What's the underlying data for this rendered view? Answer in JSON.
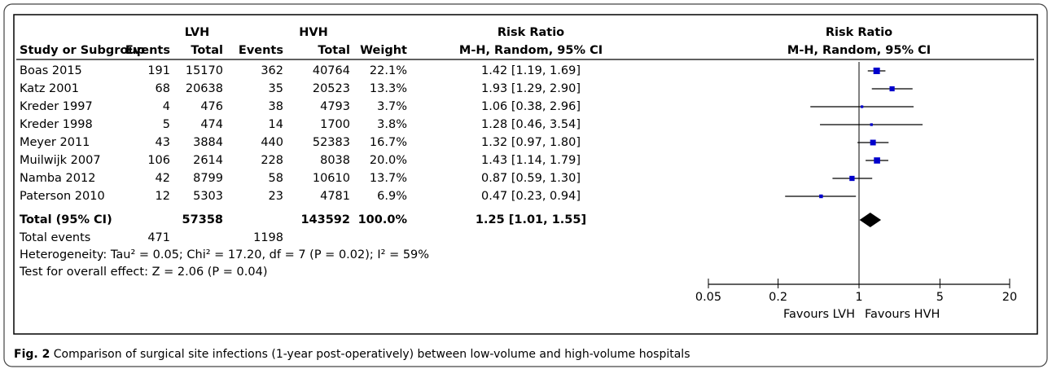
{
  "table": {
    "group_headers": [
      "LVH",
      "HVH",
      "Risk Ratio",
      "Risk Ratio"
    ],
    "column_headers": [
      "Study or Subgroup",
      "Events",
      "Total",
      "Events",
      "Total",
      "Weight",
      "M-H, Random, 95% CI",
      "M-H, Random, 95% CI"
    ],
    "rows": [
      {
        "study": "Boas 2015",
        "lvh_events": 191,
        "lvh_total": 15170,
        "hvh_events": 362,
        "hvh_total": 40764,
        "weight": 22.1,
        "weight_label": "22.1%",
        "ci_label": "1.42 [1.19, 1.69]",
        "rr": 1.42,
        "lo": 1.19,
        "hi": 1.69
      },
      {
        "study": "Katz 2001",
        "lvh_events": 68,
        "lvh_total": 20638,
        "hvh_events": 35,
        "hvh_total": 20523,
        "weight": 13.3,
        "weight_label": "13.3%",
        "ci_label": "1.93 [1.29, 2.90]",
        "rr": 1.93,
        "lo": 1.29,
        "hi": 2.9
      },
      {
        "study": "Kreder 1997",
        "lvh_events": 4,
        "lvh_total": 476,
        "hvh_events": 38,
        "hvh_total": 4793,
        "weight": 3.7,
        "weight_label": "3.7%",
        "ci_label": "1.06 [0.38, 2.96]",
        "rr": 1.06,
        "lo": 0.38,
        "hi": 2.96
      },
      {
        "study": "Kreder 1998",
        "lvh_events": 5,
        "lvh_total": 474,
        "hvh_events": 14,
        "hvh_total": 1700,
        "weight": 3.8,
        "weight_label": "3.8%",
        "ci_label": "1.28 [0.46, 3.54]",
        "rr": 1.28,
        "lo": 0.46,
        "hi": 3.54
      },
      {
        "study": "Meyer 2011",
        "lvh_events": 43,
        "lvh_total": 3884,
        "hvh_events": 440,
        "hvh_total": 52383,
        "weight": 16.7,
        "weight_label": "16.7%",
        "ci_label": "1.32 [0.97, 1.80]",
        "rr": 1.32,
        "lo": 0.97,
        "hi": 1.8
      },
      {
        "study": "Muilwijk 2007",
        "lvh_events": 106,
        "lvh_total": 2614,
        "hvh_events": 228,
        "hvh_total": 8038,
        "weight": 20.0,
        "weight_label": "20.0%",
        "ci_label": "1.43 [1.14, 1.79]",
        "rr": 1.43,
        "lo": 1.14,
        "hi": 1.79
      },
      {
        "study": "Namba 2012",
        "lvh_events": 42,
        "lvh_total": 8799,
        "hvh_events": 58,
        "hvh_total": 10610,
        "weight": 13.7,
        "weight_label": "13.7%",
        "ci_label": "0.87 [0.59, 1.30]",
        "rr": 0.87,
        "lo": 0.59,
        "hi": 1.3
      },
      {
        "study": "Paterson 2010",
        "lvh_events": 12,
        "lvh_total": 5303,
        "hvh_events": 23,
        "hvh_total": 4781,
        "weight": 6.9,
        "weight_label": "6.9%",
        "ci_label": "0.47 [0.23, 0.94]",
        "rr": 0.47,
        "lo": 0.23,
        "hi": 0.94
      }
    ],
    "total": {
      "study": "Total (95% CI)",
      "lvh_total": 57358,
      "hvh_total": 143592,
      "weight_label": "100.0%",
      "ci_label": "1.25 [1.01, 1.55]",
      "rr": 1.25,
      "lo": 1.01,
      "hi": 1.55
    },
    "total_events": {
      "label": "Total events",
      "lvh": 471,
      "hvh": 1198
    },
    "heterogeneity": "Heterogeneity: Tau² = 0.05; Chi² = 17.20, df = 7 (P = 0.02); I² = 59%",
    "overall_effect": "Test for overall effect: Z = 2.06 (P = 0.04)"
  },
  "forest": {
    "log_scale": true,
    "xlim": [
      0.05,
      20
    ],
    "xticks": [
      0.05,
      0.2,
      1,
      5,
      20
    ],
    "favours_left": "Favours LVH",
    "favours_right": "Favours HVH",
    "color": "#0000cc"
  },
  "caption": {
    "label": "Fig. 2",
    "text": "Comparison of surgical site infections (1-year post-operatively) between low-volume and high-volume hospitals"
  }
}
